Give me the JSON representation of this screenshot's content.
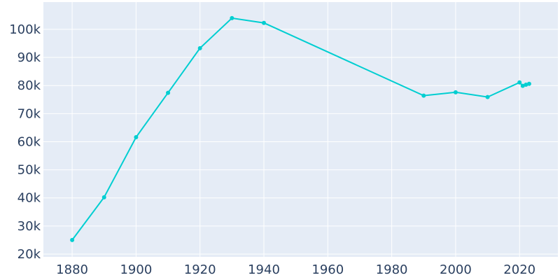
{
  "chart_data": {
    "type": "line",
    "title": "",
    "xlabel": "",
    "ylabel": "",
    "x": [
      1880,
      1890,
      1900,
      1910,
      1920,
      1930,
      1940,
      1990,
      2000,
      2010,
      2020,
      2021,
      2022,
      2023
    ],
    "values": [
      25000,
      40200,
      61600,
      77400,
      93300,
      104000,
      102300,
      76400,
      77600,
      75900,
      81100,
      79900,
      80300,
      80600
    ],
    "xlim": [
      1871,
      2032
    ],
    "ylim": [
      19000,
      109700
    ],
    "x_ticks": [
      1880,
      1900,
      1920,
      1940,
      1960,
      1980,
      2000,
      2020
    ],
    "y_ticks": [
      20000,
      30000,
      40000,
      50000,
      60000,
      70000,
      80000,
      90000,
      100000
    ],
    "y_tick_labels": [
      "20k",
      "30k",
      "40k",
      "50k",
      "60k",
      "70k",
      "80k",
      "90k",
      "100k"
    ],
    "grid": true,
    "markers": true,
    "colors": {
      "line": "#00CED1",
      "plot_bg": "#E5ECF6",
      "grid": "#FFFFFF",
      "tick_text": "#2A3F5F"
    }
  }
}
